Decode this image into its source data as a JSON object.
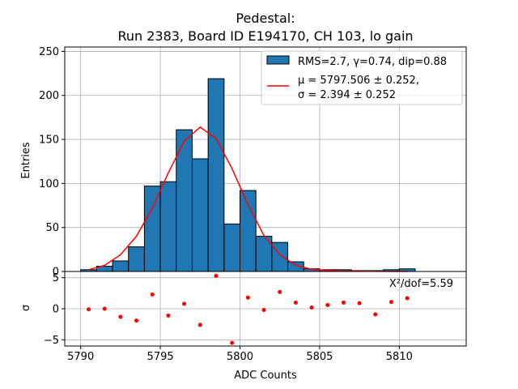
{
  "chart_data": {
    "type": "bar",
    "title_line1": "Pedestal:",
    "title_line2": "Run 2383, Board ID E194170, CH 103, lo gain",
    "xlabel": "ADC Counts",
    "ylabel_top": "Entries",
    "ylabel_bottom": "σ",
    "xlim": [
      5789.0,
      5814.2
    ],
    "ylim_top": [
      0,
      255
    ],
    "ylim_bottom": [
      -6.0,
      6.0
    ],
    "x_ticks": [
      5790,
      5795,
      5800,
      5805,
      5810
    ],
    "y_ticks_top": [
      0,
      50,
      100,
      150,
      200,
      250
    ],
    "y_ticks_bottom": [
      -5,
      0,
      5
    ],
    "x_tick_labels": [
      "5790",
      "5795",
      "5800",
      "5805",
      "5810"
    ],
    "y_tick_labels_top": [
      "0",
      "50",
      "100",
      "150",
      "200",
      "250"
    ],
    "y_tick_labels_bottom": [
      "−5",
      "0",
      "5"
    ],
    "grid": true,
    "legend": {
      "position": "top-right",
      "hist_label": "RMS=2.7, γ=0.74, dip=0.88",
      "fit_label_line1": "μ = 5797.506 ± 0.252,",
      "fit_label_line2": "σ = 2.394 ± 0.252"
    },
    "bin_edges": [
      5790,
      5791,
      5792,
      5793,
      5794,
      5795,
      5796,
      5797,
      5798,
      5799,
      5800,
      5801,
      5802,
      5803,
      5804,
      5805,
      5806,
      5807,
      5808,
      5809,
      5810,
      5811
    ],
    "counts": [
      2,
      6,
      12,
      28,
      97,
      102,
      161,
      128,
      219,
      54,
      92,
      40,
      33,
      11,
      3,
      2,
      2,
      1,
      1,
      2,
      3
    ],
    "fit": {
      "x": [
        5790.5,
        5791.5,
        5792.5,
        5793.5,
        5794.5,
        5795.5,
        5796.5,
        5797.5,
        5798.5,
        5799.5,
        5800.5,
        5801.5,
        5802.5,
        5803.5,
        5804.5,
        5805.5,
        5806.5,
        5807.5,
        5808.5,
        5809.5,
        5810.5
      ],
      "y": [
        2,
        7,
        19,
        40,
        72,
        112,
        148,
        164,
        151,
        117,
        76,
        41,
        19,
        7,
        2.5,
        1,
        0.5,
        0.3,
        0.2,
        0.1,
        0.1
      ]
    },
    "residuals": {
      "x": [
        5790.5,
        5791.5,
        5792.5,
        5793.5,
        5794.5,
        5795.5,
        5796.5,
        5797.5,
        5798.5,
        5799.5,
        5800.5,
        5801.5,
        5802.5,
        5803.5,
        5804.5,
        5805.5,
        5806.5,
        5807.5,
        5808.5,
        5809.5,
        5810.5
      ],
      "y": [
        -0.1,
        0.0,
        -1.3,
        -1.9,
        2.3,
        -1.1,
        0.8,
        -2.6,
        5.3,
        -5.5,
        1.8,
        -0.2,
        2.7,
        1.0,
        0.2,
        0.6,
        1.0,
        0.9,
        -0.9,
        1.1,
        1.7
      ]
    },
    "annotation": "X²/dof=5.59",
    "colors": {
      "bar": "#1f77b4",
      "fit": "#ff0000",
      "points": "#ff0000",
      "grid": "#b0b0b0"
    }
  }
}
